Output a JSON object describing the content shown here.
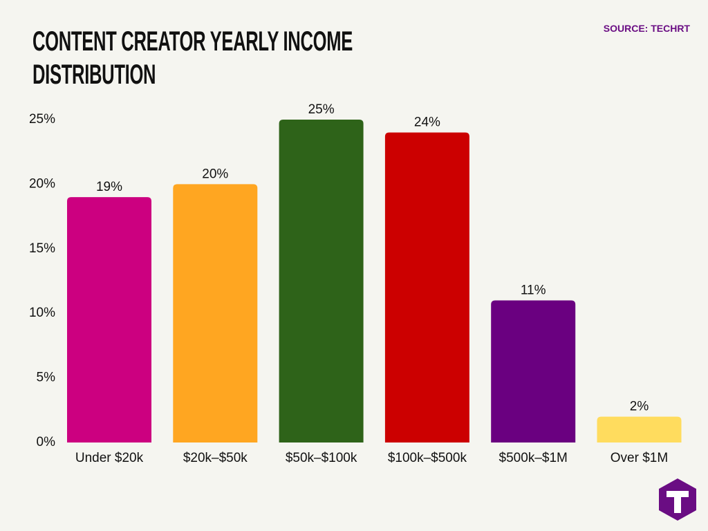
{
  "chart_data": {
    "type": "bar",
    "title": "CONTENT CREATOR YEARLY INCOME DISTRIBUTION",
    "source": "SOURCE: TECHRT",
    "categories": [
      "Under $20k",
      "$20k–$50k",
      "$50k–$100k",
      "$100k–$500k",
      "$500k–$1M",
      "Over $1M"
    ],
    "values": [
      19,
      20,
      25,
      24,
      11,
      2
    ],
    "value_labels": [
      "19%",
      "20%",
      "25%",
      "24%",
      "11%",
      "2%"
    ],
    "colors": [
      "#cc0080",
      "#ffa621",
      "#2e6319",
      "#cc0000",
      "#6a0080",
      "#ffdc5e"
    ],
    "ylim": [
      0,
      25
    ],
    "yticks": [
      {
        "value": 0,
        "label": "0%"
      },
      {
        "value": 5,
        "label": "5%"
      },
      {
        "value": 10,
        "label": "10%"
      },
      {
        "value": 15,
        "label": "15%"
      },
      {
        "value": 20,
        "label": "20%"
      },
      {
        "value": 25,
        "label": "25%"
      }
    ],
    "grid": false
  }
}
